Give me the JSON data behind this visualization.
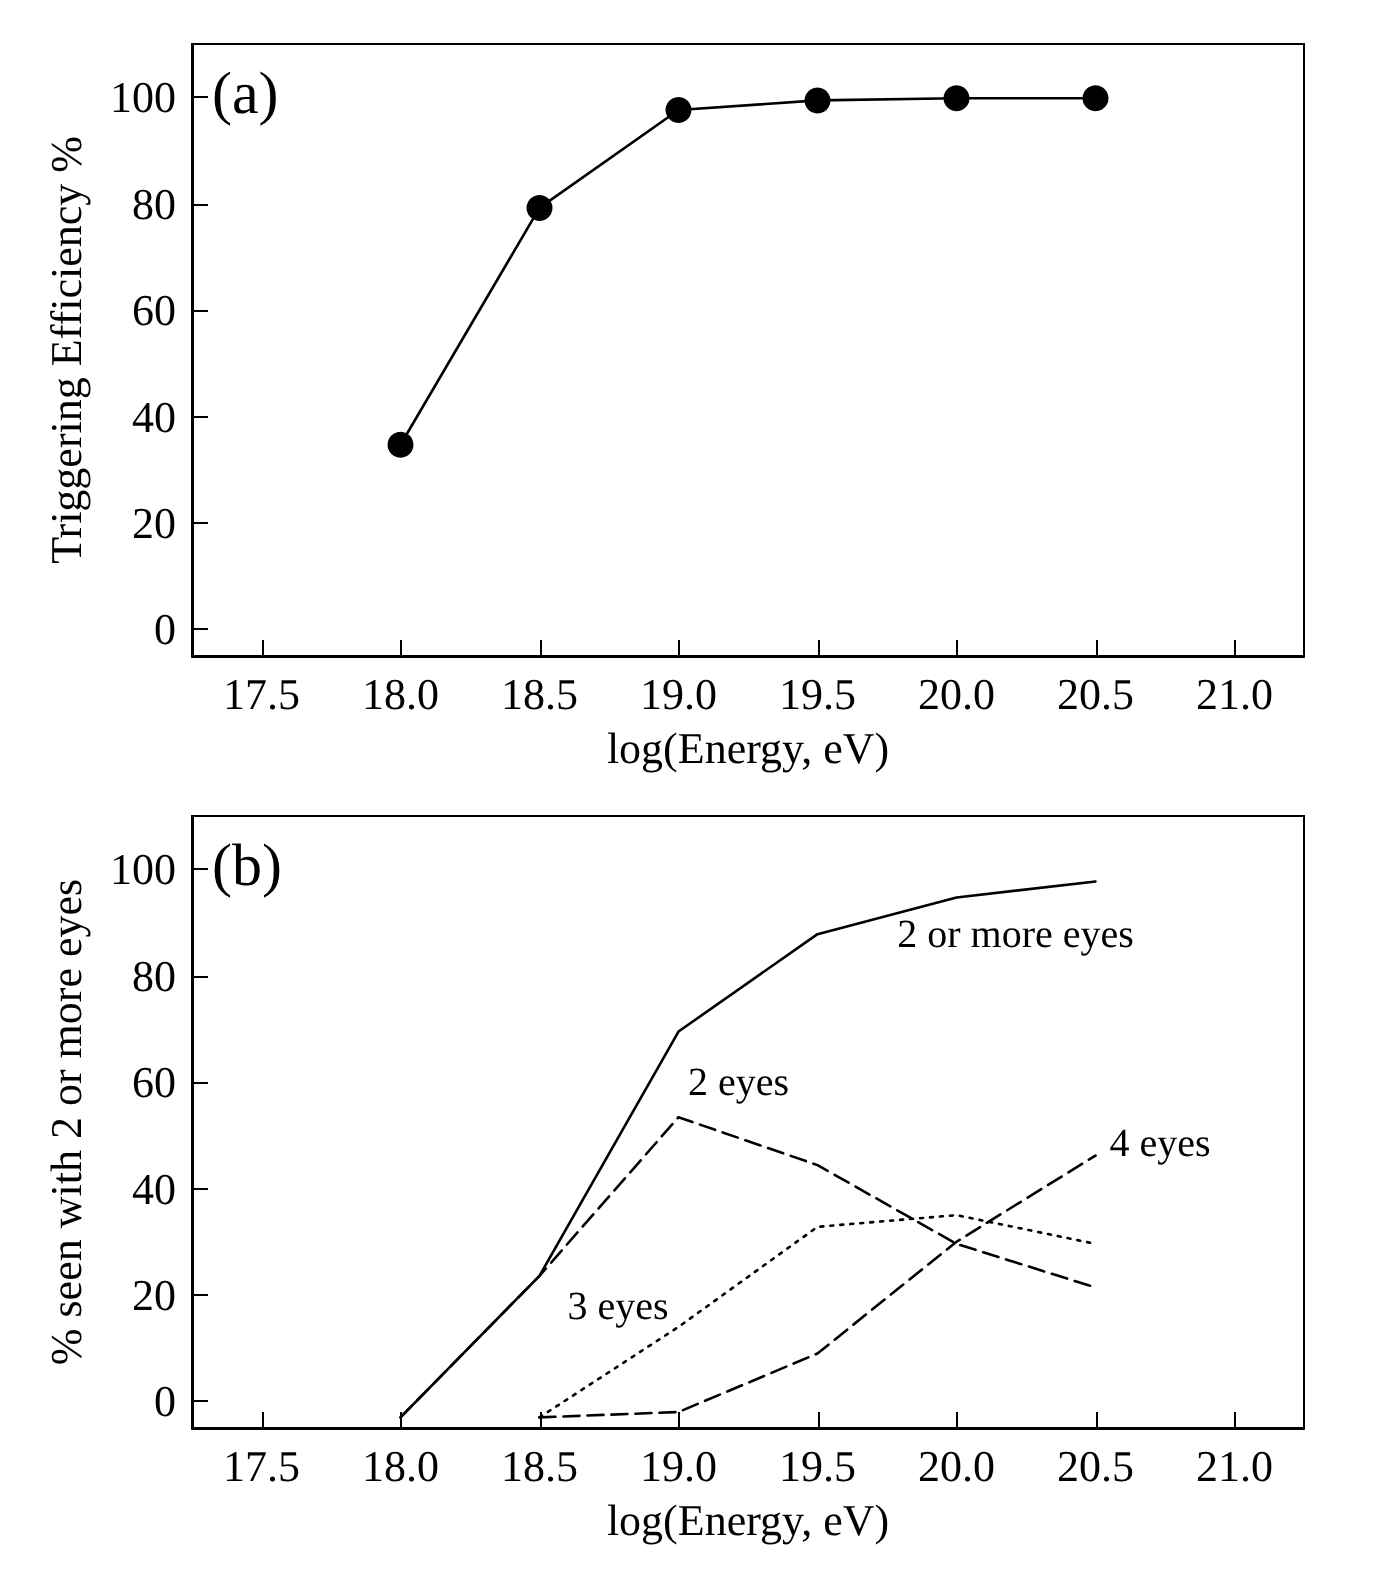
{
  "chart_data": [
    {
      "type": "line",
      "annotations": [
        "(a)"
      ],
      "xlabel": "log(Energy, eV)",
      "ylabel": "Triggering Efficiency %",
      "marker": "circle",
      "line_style": "solid",
      "x": [
        18.0,
        18.5,
        19.0,
        19.5,
        20.0,
        20.5
      ],
      "series": [
        {
          "color": "#000000",
          "values": [
            34.7,
            79.2,
            97.6,
            99.4,
            99.8,
            99.8
          ]
        }
      ],
      "xlim": [
        17.25,
        21.25
      ],
      "ylim": [
        -5,
        110
      ],
      "xticks": [
        {
          "value": 17.5,
          "label": "17.5"
        },
        {
          "value": 18,
          "label": "18.0"
        },
        {
          "value": 18.5,
          "label": "18.5"
        },
        {
          "value": 19,
          "label": "19.0"
        },
        {
          "value": 19.5,
          "label": "19.5"
        },
        {
          "value": 20,
          "label": "20.0"
        },
        {
          "value": 20.5,
          "label": "20.5"
        },
        {
          "value": 21,
          "label": "21.0"
        }
      ],
      "yticks": [
        0,
        20,
        40,
        60,
        80,
        100
      ]
    },
    {
      "type": "line",
      "annotations": [
        "(b)"
      ],
      "xlabel": "log(Energy, eV)",
      "ylabel": "% seen with 2 or more eyes",
      "marker": "none",
      "x": [
        18.0,
        18.5,
        19.0,
        19.5,
        20.0,
        20.5
      ],
      "series": [
        {
          "name": "2 or more eyes",
          "color": "#000000",
          "line_style": "solid",
          "values": [
            -3,
            23.6,
            69.5,
            87.8,
            94.7,
            97.7
          ]
        },
        {
          "name": "2 eyes",
          "color": "#000000",
          "line_style": "dashed",
          "values": [
            -3,
            23.6,
            53.4,
            44.4,
            29.6,
            21.4
          ]
        },
        {
          "name": "3 eyes",
          "color": "#000000",
          "line_style": "dotted",
          "values": [
            null,
            -3,
            14,
            32.8,
            35,
            29.6
          ]
        },
        {
          "name": "4 eyes",
          "color": "#000000",
          "line_style": "dashed",
          "values": [
            null,
            -3,
            -2,
            9,
            30,
            46.2
          ]
        }
      ],
      "xlim": [
        17.25,
        21.25
      ],
      "ylim": [
        -5,
        110
      ],
      "xticks": [
        {
          "value": 17.5,
          "label": "17.5"
        },
        {
          "value": 18,
          "label": "18.0"
        },
        {
          "value": 18.5,
          "label": "18.5"
        },
        {
          "value": 19,
          "label": "19.0"
        },
        {
          "value": 19.5,
          "label": "19.5"
        },
        {
          "value": 20,
          "label": "20.0"
        },
        {
          "value": 20.5,
          "label": "20.5"
        },
        {
          "value": 21,
          "label": "21.0"
        }
      ],
      "yticks": [
        0,
        20,
        40,
        60,
        80,
        100
      ]
    }
  ]
}
